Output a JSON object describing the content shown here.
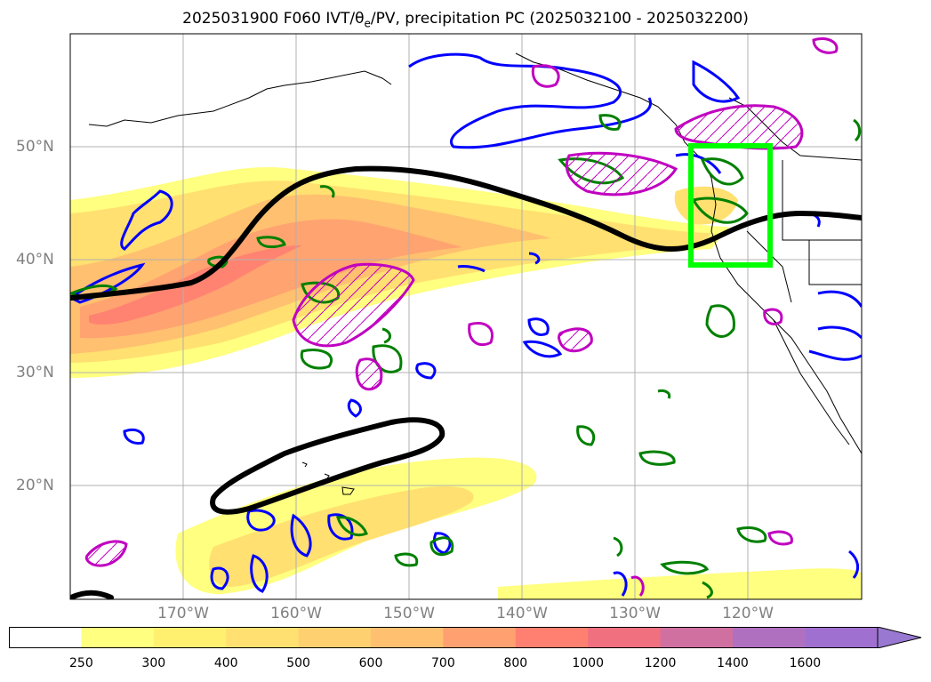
{
  "title": {
    "prefix": "2025031900 F060 IVT/θ",
    "subscript": "e",
    "suffix": "/PV, precipitation PC (2025032100 - 2025032200)"
  },
  "map": {
    "lon_range": [
      180,
      110
    ],
    "lat_range": [
      10,
      60
    ],
    "grid": true,
    "lon_labels": [
      "170°W",
      "160°W",
      "150°W",
      "140°W",
      "130°W",
      "120°W"
    ],
    "lat_labels": [
      "50°N",
      "40°N",
      "30°N",
      "20°N"
    ],
    "highlight_box": {
      "lon": [
        125,
        118
      ],
      "lat": [
        39.5,
        50
      ],
      "color": "#00ff00"
    },
    "contour_colors": {
      "pv_line": "#000000",
      "blue": "#0000ff",
      "green": "#008000",
      "magenta": "#c000c0"
    }
  },
  "colorbar": {
    "levels": [
      "250",
      "300",
      "400",
      "500",
      "600",
      "700",
      "800",
      "1000",
      "1200",
      "1400",
      "1600"
    ],
    "colors": [
      "#ffff80",
      "#fff070",
      "#ffe070",
      "#ffd070",
      "#ffc070",
      "#ffa070",
      "#ff8070",
      "#f07080",
      "#d070a0",
      "#b070c0",
      "#a070d0",
      "#9878d0"
    ],
    "extend": "max"
  }
}
